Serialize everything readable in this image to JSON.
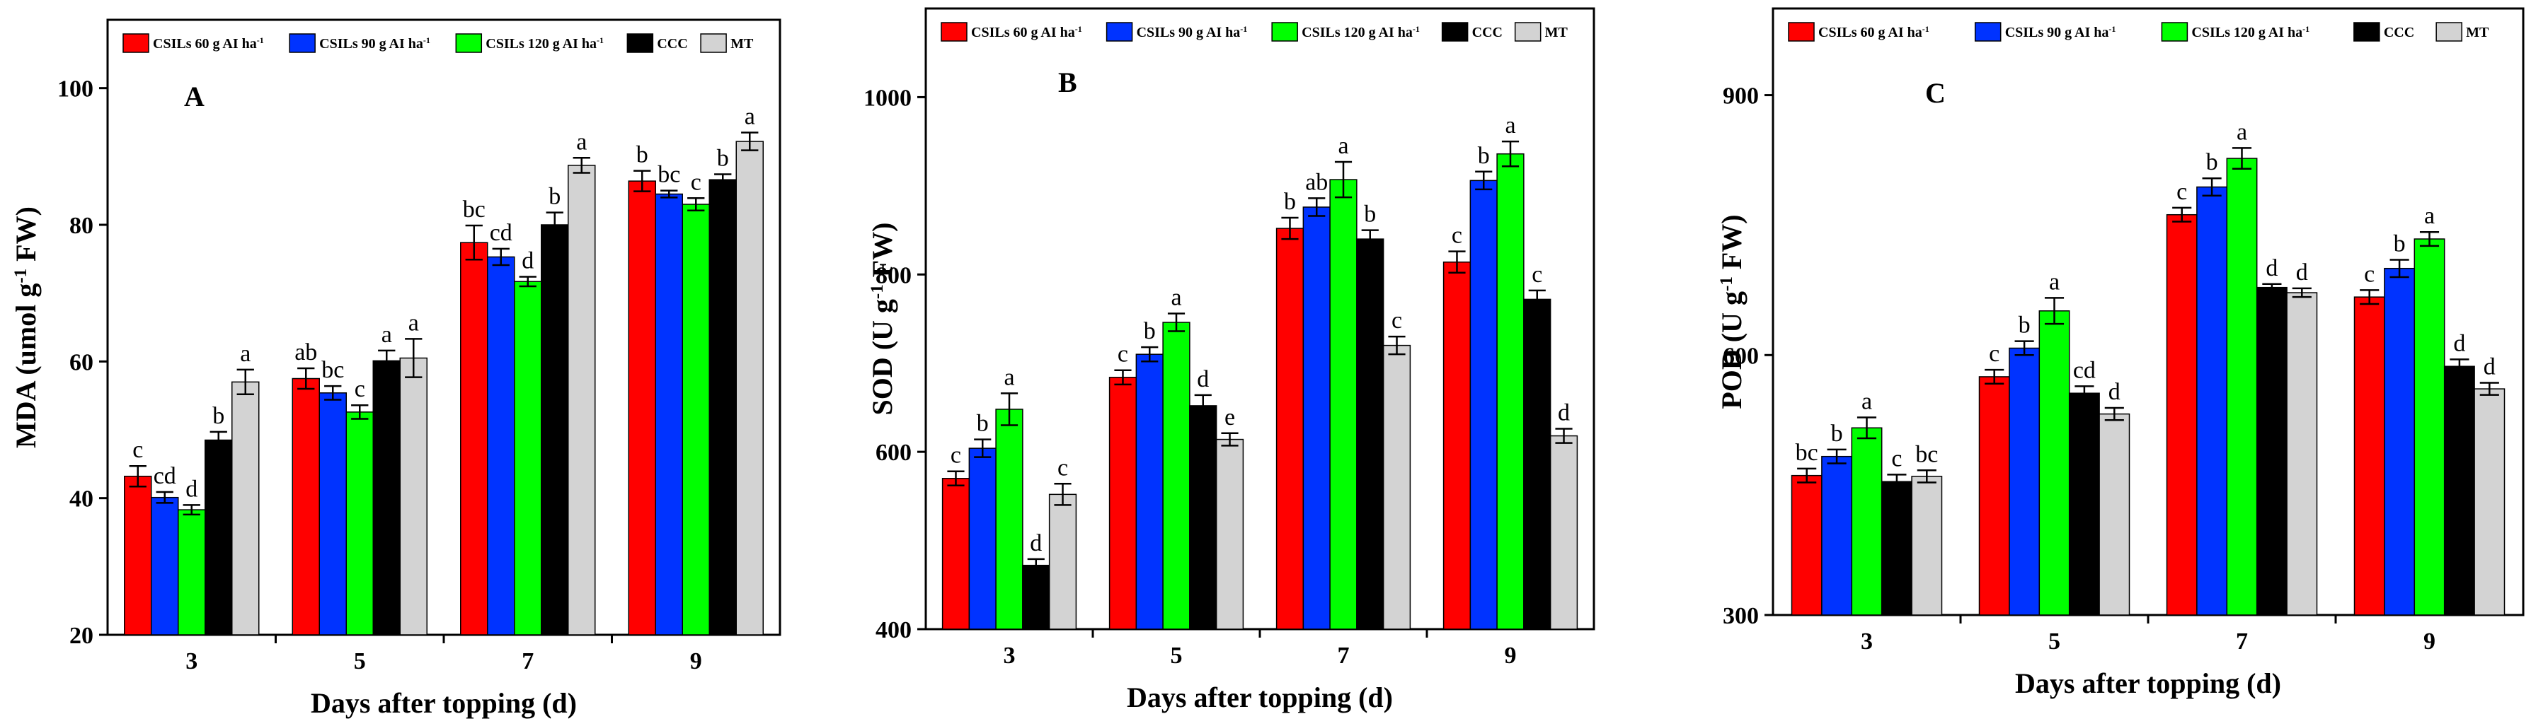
{
  "chart_data": [
    {
      "type": "bar",
      "panel": "A",
      "ylabel": "MDA (umol g⁻¹ FW)",
      "xlabel": "Days after topping (d)",
      "ylim": [
        20,
        110
      ],
      "yticks": [
        "20",
        "40",
        "60",
        "80",
        "100"
      ],
      "categories": [
        "3",
        "5",
        "7",
        "9"
      ],
      "series": [
        {
          "name": "CSILs 60 g AI ha⁻¹",
          "color": "#ff0000",
          "values": [
            43.2,
            57.5,
            77.4,
            86.4
          ],
          "errors": [
            1.5,
            1.5,
            2.5,
            1.5
          ],
          "labels": [
            "c",
            "ab",
            "bc",
            "b"
          ]
        },
        {
          "name": "CSILs 90 g AI ha⁻¹",
          "color": "#0033ff",
          "values": [
            40.1,
            55.4,
            75.3,
            84.5
          ],
          "errors": [
            0.8,
            1.0,
            1.2,
            0.5
          ],
          "labels": [
            "cd",
            "bc",
            "cd",
            "bc"
          ]
        },
        {
          "name": "CSILs 120 g AI ha⁻¹",
          "color": "#00ff00",
          "values": [
            38.3,
            52.6,
            71.7,
            83.0
          ],
          "errors": [
            0.7,
            1.0,
            0.7,
            0.9
          ],
          "labels": [
            "d",
            "c",
            "d",
            "c"
          ]
        },
        {
          "name": "CCC",
          "color": "#000000",
          "values": [
            48.5,
            60.1,
            80.0,
            86.6
          ],
          "errors": [
            1.2,
            1.5,
            1.8,
            0.8
          ],
          "labels": [
            "b",
            "a",
            "b",
            "b"
          ]
        },
        {
          "name": "MT",
          "color": "#d3d3d3",
          "values": [
            57.0,
            60.5,
            88.7,
            92.2
          ],
          "errors": [
            1.8,
            2.8,
            1.1,
            1.3
          ],
          "labels": [
            "a",
            "a",
            "a",
            "a"
          ]
        }
      ]
    },
    {
      "type": "bar",
      "panel": "B",
      "ylabel": "SOD (U g⁻¹ FW)",
      "xlabel": "Days after topping (d)",
      "ylim": [
        400,
        1100
      ],
      "yticks": [
        "400",
        "600",
        "800",
        "1000"
      ],
      "categories": [
        "3",
        "5",
        "7",
        "9"
      ],
      "series": [
        {
          "name": "CSILs 60 g AI ha⁻¹",
          "color": "#ff0000",
          "values": [
            570,
            684,
            852,
            814
          ],
          "errors": [
            8,
            8,
            12,
            12
          ],
          "labels": [
            "c",
            "c",
            "b",
            "c"
          ]
        },
        {
          "name": "CSILs 90 g AI ha⁻¹",
          "color": "#0033ff",
          "values": [
            604,
            710,
            876,
            906
          ],
          "errors": [
            10,
            8,
            10,
            10
          ],
          "labels": [
            "b",
            "b",
            "ab",
            "b"
          ]
        },
        {
          "name": "CSILs 120 g AI ha⁻¹",
          "color": "#00ff00",
          "values": [
            648,
            746,
            907,
            936
          ],
          "errors": [
            18,
            10,
            20,
            14
          ],
          "labels": [
            "a",
            "a",
            "a",
            "a"
          ]
        },
        {
          "name": "CCC",
          "color": "#000000",
          "values": [
            472,
            652,
            840,
            772
          ],
          "errors": [
            7,
            12,
            10,
            10
          ],
          "labels": [
            "d",
            "d",
            "b",
            "c"
          ]
        },
        {
          "name": "MT",
          "color": "#d3d3d3",
          "values": [
            552,
            614,
            720,
            618
          ],
          "errors": [
            12,
            7,
            10,
            8
          ],
          "labels": [
            "c",
            "e",
            "c",
            "d"
          ]
        }
      ]
    },
    {
      "type": "bar",
      "panel": "C",
      "ylabel": "POD (U g⁻¹ FW)",
      "xlabel": "Days after topping (d)",
      "ylim": [
        300,
        1000
      ],
      "yticks": [
        "300",
        "600",
        "900"
      ],
      "categories": [
        "3",
        "5",
        "7",
        "9"
      ],
      "series": [
        {
          "name": "CSILs 60 g AI ha⁻¹",
          "color": "#ff0000",
          "values": [
            461,
            575,
            762,
            667
          ],
          "errors": [
            8,
            8,
            8,
            8
          ],
          "labels": [
            "bc",
            "c",
            "c",
            "c"
          ]
        },
        {
          "name": "CSILs 90 g AI ha⁻¹",
          "color": "#0033ff",
          "values": [
            483,
            608,
            794,
            700
          ],
          "errors": [
            8,
            8,
            10,
            10
          ],
          "labels": [
            "b",
            "b",
            "b",
            "b"
          ]
        },
        {
          "name": "CSILs 120 g AI ha⁻¹",
          "color": "#00ff00",
          "values": [
            516,
            651,
            827,
            734
          ],
          "errors": [
            12,
            15,
            12,
            8
          ],
          "labels": [
            "a",
            "a",
            "a",
            "a"
          ]
        },
        {
          "name": "CCC",
          "color": "#000000",
          "values": [
            454,
            556,
            678,
            587
          ],
          "errors": [
            8,
            8,
            4,
            8
          ],
          "labels": [
            "c",
            "cd",
            "d",
            "d"
          ]
        },
        {
          "name": "MT",
          "color": "#d3d3d3",
          "values": [
            460,
            532,
            672,
            561
          ],
          "errors": [
            7,
            7,
            5,
            7
          ],
          "labels": [
            "bc",
            "d",
            "d",
            "d"
          ]
        }
      ]
    }
  ]
}
